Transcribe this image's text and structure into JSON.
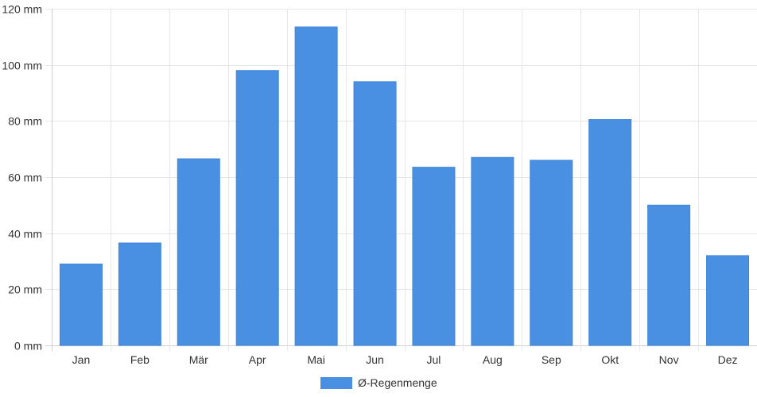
{
  "chart_data": {
    "type": "bar",
    "categories": [
      "Jan",
      "Feb",
      "Mär",
      "Apr",
      "Mai",
      "Jun",
      "Jul",
      "Aug",
      "Sep",
      "Okt",
      "Nov",
      "Dez"
    ],
    "series": [
      {
        "name": "Ø-Regenmenge",
        "values": [
          29,
          36.5,
          66.5,
          98,
          113.5,
          94,
          63.5,
          67,
          66,
          80.5,
          50,
          32
        ],
        "color": "#4a90e2"
      }
    ],
    "ylim": [
      0,
      120
    ],
    "y_ticks": [
      0,
      20,
      40,
      60,
      80,
      100,
      120
    ],
    "y_unit": "mm",
    "grid": true,
    "legend_position": "bottom-center"
  }
}
